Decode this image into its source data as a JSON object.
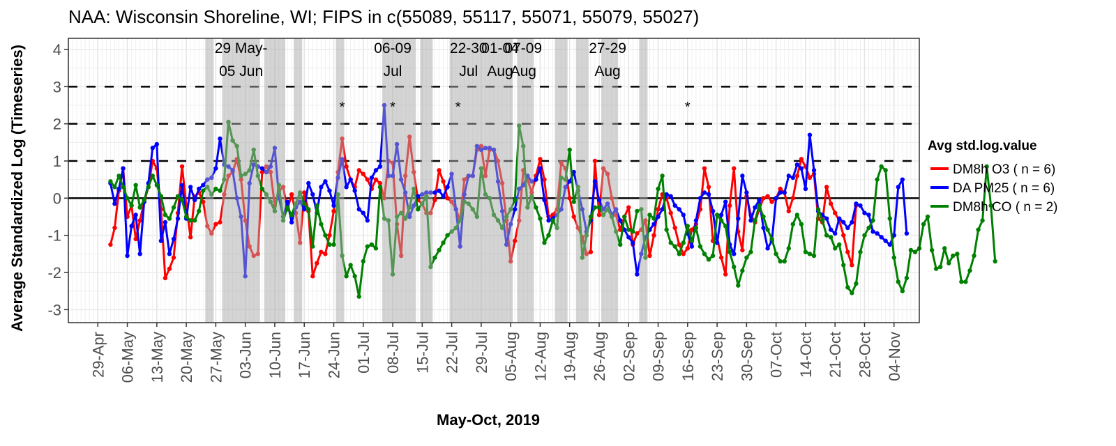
{
  "chart_data": {
    "type": "line",
    "title": "NAA: Wisconsin Shoreline, WI; FIPS in c(55089, 55117, 55071, 55079, 55027)",
    "xlabel": "May-Oct, 2019",
    "ylabel": "Average Standardized Log (Timeseries)",
    "x_start_date": "2019-04-29",
    "xlim_days": [
      -7,
      195
    ],
    "ylim": [
      -3.35,
      4.3
    ],
    "grid": true,
    "legend_position": "right",
    "legend_title": "Avg std.log.value",
    "x_ticks": [
      "29-Apr",
      "06-May",
      "13-May",
      "20-May",
      "27-May",
      "03-Jun",
      "10-Jun",
      "17-Jun",
      "24-Jun",
      "01-Jul",
      "08-Jul",
      "15-Jul",
      "22-Jul",
      "29-Jul",
      "05-Aug",
      "12-Aug",
      "19-Aug",
      "26-Aug",
      "02-Sep",
      "09-Sep",
      "16-Sep",
      "23-Sep",
      "30-Sep",
      "07-Oct",
      "14-Oct",
      "21-Oct",
      "28-Oct",
      "04-Nov"
    ],
    "y_ticks": [
      "4",
      "3",
      "2",
      "1",
      "0",
      "-1",
      "-2",
      "-3"
    ],
    "y_tick_values": [
      4,
      3,
      2,
      1,
      0,
      -1,
      -2,
      -3
    ],
    "reference_lines": {
      "dashed": [
        1,
        2,
        3
      ],
      "solid": [
        0
      ]
    },
    "shaded_bands_days": [
      [
        26,
        27
      ],
      [
        30,
        38
      ],
      [
        40,
        41
      ],
      [
        42,
        44
      ],
      [
        47,
        48
      ],
      [
        57,
        58
      ],
      [
        68,
        72
      ],
      [
        73,
        75
      ],
      [
        77,
        79
      ],
      [
        84,
        93
      ],
      [
        94,
        98
      ],
      [
        100,
        103
      ],
      [
        109,
        111
      ],
      [
        114,
        116
      ],
      [
        120,
        123
      ],
      [
        129,
        130
      ]
    ],
    "band_annotations": [
      {
        "day": 34,
        "line1": "29 May-",
        "line2": "05 Jun"
      },
      {
        "day": 70,
        "line1": "06-09",
        "line2": "Jul"
      },
      {
        "day": 88,
        "line1": "22-30",
        "line2": "Jul"
      },
      {
        "day": 95.5,
        "line1": "01-04",
        "line2": "Aug"
      },
      {
        "day": 101,
        "line1": "07-09",
        "line2": "Aug"
      },
      {
        "day": 121,
        "line1": "27-29",
        "line2": "Aug"
      }
    ],
    "star_annotations_days": [
      58,
      70,
      85.5,
      140
    ],
    "star_label": "*",
    "start_day": 3,
    "series": [
      {
        "name": "DM8h O3 ( n = 6)",
        "color": "#ff0000",
        "values": [
          -1.25,
          -0.8,
          0.2,
          0.8,
          -0.5,
          -0.2,
          -1.1,
          -0.6,
          -0.1,
          0.3,
          1.0,
          0.8,
          -0.3,
          -2.15,
          -1.9,
          -1.6,
          -0.4,
          0.85,
          -0.2,
          -1.05,
          0.05,
          0.15,
          -0.1,
          -0.75,
          -0.95,
          -0.7,
          -0.65,
          0.1,
          0.6,
          0.7,
          1.05,
          0.5,
          -0.6,
          -1.3,
          -1.55,
          -1.5,
          0.7,
          0.85,
          0.7,
          -0.2,
          0.2,
          0.3,
          -0.3,
          0.1,
          -0.4,
          -1.2,
          0.15,
          -0.35,
          -2.1,
          -1.75,
          -1.45,
          -1.5,
          -1.0,
          -0.35,
          0.7,
          1.6,
          0.85,
          0.5,
          0.3,
          0.75,
          0.65,
          0.5,
          0.25,
          0.5,
          0.4,
          0.0,
          1.0,
          0.95,
          -0.7,
          -1.55,
          0.6,
          1.65,
          0.7,
          -0.05,
          -0.15,
          -0.4,
          -0.4,
          -0.05,
          0.75,
          0.45,
          0.0,
          -0.1,
          -0.3,
          -0.6,
          0.5,
          0.6,
          0.6,
          1.3,
          1.4,
          0.6,
          1.3,
          1.3,
          1.0,
          0.4,
          -0.6,
          -1.7,
          -1.15,
          -0.6,
          0.75,
          0.5,
          0.15,
          0.6,
          1.05,
          0.5,
          -0.5,
          -0.45,
          -0.3,
          0.95,
          0.8,
          0.0,
          -0.5,
          -0.8,
          -1.05,
          -1.5,
          -1.45,
          1.0,
          -0.45,
          0.8,
          0.65,
          0.0,
          -0.45,
          -0.85,
          -0.5,
          -0.25,
          -1.25,
          -0.95,
          -0.85,
          -0.6,
          -1.55,
          -1.0,
          -0.3,
          0.1,
          0.0,
          -0.4,
          -0.8,
          -1.25,
          -1.5,
          -1.35,
          -0.85,
          -0.7,
          -0.3,
          0.8,
          0.3,
          -1.15,
          -1.05,
          -1.6,
          -2.05,
          -0.2,
          0.8,
          -0.9,
          -1.4,
          0.05,
          -0.45,
          -0.65,
          -0.3,
          0.0,
          0.05,
          -0.1,
          0.0,
          0.25,
          0.15,
          -0.35,
          0.0,
          0.6,
          1.05,
          0.85,
          0.55,
          0.65,
          -0.55,
          -0.65,
          0.3,
          -0.15,
          -0.4,
          -0.6,
          -1.0,
          -1.45,
          -1.8,
          -0.2
        ]
      },
      {
        "name": "DA PM25 ( n = 6)",
        "color": "#0000ff",
        "values": [
          0.4,
          -0.15,
          0.25,
          0.8,
          -1.55,
          -0.75,
          -0.45,
          -1.5,
          -0.1,
          0.4,
          1.35,
          1.45,
          -1.15,
          -0.65,
          -1.5,
          -1.1,
          -0.55,
          0.35,
          -0.55,
          0.3,
          -0.05,
          0.25,
          0.35,
          0.5,
          0.55,
          0.8,
          1.6,
          0.9,
          0.85,
          0.75,
          0.0,
          -0.5,
          -2.1,
          0.4,
          0.9,
          0.85,
          0.8,
          0.7,
          0.85,
          1.35,
          0.0,
          -0.5,
          -0.1,
          -0.65,
          -0.25,
          -0.1,
          -0.3,
          0.4,
          0.1,
          -0.4,
          0.3,
          0.45,
          0.2,
          -0.2,
          0.55,
          1.05,
          0.3,
          0.5,
          0.2,
          -0.3,
          -0.4,
          -0.6,
          0.55,
          0.75,
          0.85,
          2.5,
          0.6,
          0.6,
          1.45,
          0.5,
          0.15,
          -0.5,
          -0.2,
          0.05,
          0.1,
          0.15,
          0.15,
          0.15,
          0.2,
          0.05,
          0.3,
          0.65,
          -0.3,
          -1.3,
          0.1,
          0.6,
          0.6,
          1.4,
          1.3,
          1.35,
          1.35,
          1.3,
          0.45,
          -0.35,
          -1.25,
          -0.7,
          -0.3,
          0.25,
          0.35,
          0.6,
          0.45,
          0.5,
          0.8,
          -0.05,
          -0.6,
          -0.55,
          -0.45,
          -0.3,
          0.3,
          0.45,
          0.7,
          0.2,
          -0.3,
          -0.9,
          -0.6,
          0.45,
          -0.05,
          -0.3,
          -0.15,
          -0.45,
          -0.3,
          -0.6,
          -0.85,
          -1.05,
          -1.2,
          -2.05,
          -1.5,
          -1.05,
          -0.85,
          -0.7,
          -0.5,
          -0.3,
          0.1,
          0.05,
          -0.2,
          -0.3,
          -0.45,
          -0.95,
          -1.3,
          -0.6,
          0.0,
          0.15,
          0.1,
          -0.35,
          -1.2,
          -0.45,
          -0.1,
          -1.25,
          -1.5,
          -0.55,
          0.6,
          0.15,
          -0.6,
          -0.25,
          -0.05,
          -0.8,
          -1.35,
          -1.15,
          0.0,
          0.15,
          0.15,
          0.6,
          0.55,
          0.9,
          0.8,
          0.25,
          1.7,
          0.75,
          -0.35,
          -0.45,
          -0.55,
          -0.85,
          -0.95,
          -0.55,
          -0.65,
          -0.8,
          -0.65,
          -0.15,
          -0.2,
          -0.4,
          -0.45,
          -0.9,
          -0.95,
          -1.05,
          -1.15,
          -1.25,
          -1.0,
          0.3,
          0.5,
          -0.95
        ]
      },
      {
        "name": "DM8h CO ( n = 2)",
        "color": "#008000",
        "values": [
          0.45,
          0.3,
          0.6,
          0.3,
          0.0,
          -0.2,
          0.35,
          -0.25,
          -0.05,
          0.3,
          0.6,
          0.35,
          0.05,
          -0.45,
          -0.55,
          -0.25,
          0.05,
          -0.05,
          -0.5,
          -0.6,
          -0.6,
          -0.35,
          0.2,
          0.3,
          0.1,
          0.25,
          0.2,
          0.5,
          2.05,
          1.55,
          1.4,
          0.6,
          0.65,
          0.75,
          1.3,
          0.6,
          0.25,
          0.1,
          -0.1,
          -0.35,
          0.35,
          -0.6,
          -0.25,
          -0.45,
          -0.15,
          0.15,
          -0.15,
          -0.3,
          -1.3,
          -0.2,
          -0.7,
          -1.0,
          -1.25,
          -1.25,
          0.1,
          -1.55,
          -2.1,
          -1.8,
          -2.1,
          -2.65,
          -1.7,
          -1.3,
          -1.25,
          -1.35,
          0.3,
          -0.55,
          -0.6,
          -2.05,
          -0.5,
          -0.4,
          -0.55,
          -0.25,
          0.25,
          -0.3,
          -0.15,
          0.05,
          -1.85,
          -1.6,
          -1.4,
          -1.2,
          -1.0,
          -0.9,
          -0.8,
          -0.6,
          -0.1,
          -0.15,
          -0.3,
          -0.5,
          0.8,
          0.1,
          0.0,
          -0.45,
          -0.6,
          -0.8,
          -0.5,
          -0.3,
          -0.05,
          1.95,
          1.4,
          -0.25,
          0.05,
          -0.25,
          -0.55,
          -1.2,
          -1.0,
          -0.6,
          -0.8,
          0.55,
          0.5,
          1.3,
          -0.1,
          0.3,
          -1.6,
          -1.0,
          -0.5,
          -0.25,
          -0.25,
          -0.45,
          -0.3,
          -0.5,
          -0.9,
          -1.25,
          -0.5,
          -0.85,
          -0.9,
          -0.35,
          -0.3,
          -1.6,
          -0.45,
          -0.55,
          0.25,
          0.6,
          -0.85,
          -1.2,
          -1.3,
          -1.5,
          -1.2,
          -0.75,
          -1.15,
          -0.8,
          -1.3,
          -1.5,
          -1.65,
          -1.55,
          -0.45,
          -0.6,
          -0.75,
          -1.45,
          -1.85,
          -2.35,
          -1.95,
          -1.6,
          -1.45,
          -0.6,
          -0.2,
          -0.5,
          -0.85,
          -1.1,
          -1.5,
          -1.7,
          -1.7,
          -1.35,
          -0.7,
          -0.45,
          -0.7,
          -1.45,
          -1.5,
          -1.55,
          -0.3,
          -0.6,
          -1.0,
          -1.05,
          -1.35,
          -1.25,
          -1.8,
          -2.4,
          -2.55,
          -2.3,
          -1.45,
          -1.0,
          -0.8,
          -0.6,
          0.5,
          0.85,
          0.75,
          -0.55,
          -1.6,
          -2.25,
          -2.5,
          -2.15,
          -1.4,
          -1.45,
          -1.35,
          -0.7,
          -0.5,
          -1.4,
          -1.9,
          -1.85,
          -1.35,
          -1.75,
          -1.55,
          -1.5,
          -2.25,
          -2.25,
          -1.95,
          -1.55,
          -0.85,
          -0.6,
          0.85,
          -0.2,
          -1.7
        ]
      }
    ]
  }
}
